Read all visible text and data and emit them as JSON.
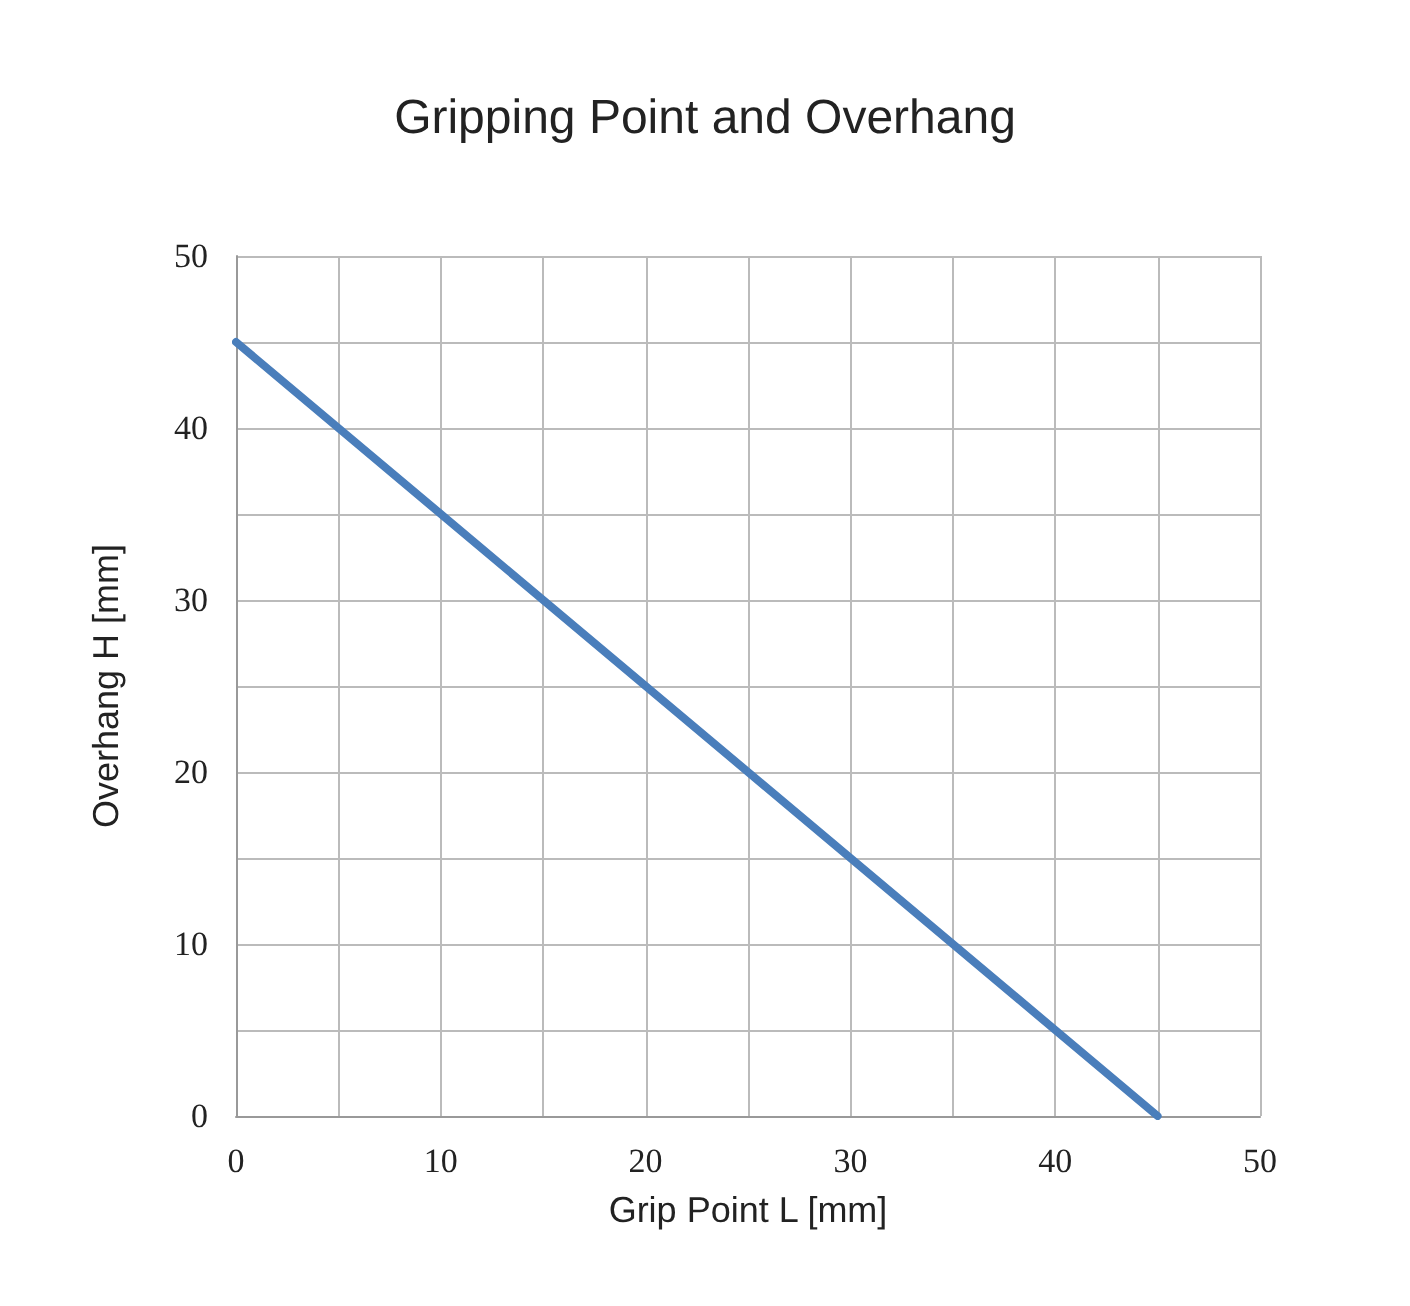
{
  "chart_data": {
    "type": "line",
    "title": "Gripping Point and Overhang",
    "xlabel": "Grip Point L [mm]",
    "ylabel": "Overhang H [mm]",
    "x": [
      0,
      45
    ],
    "series": [
      {
        "color": "#4a7ebb",
        "values": [
          45,
          0
        ]
      }
    ],
    "xlim": [
      0,
      50
    ],
    "ylim": [
      0,
      50
    ],
    "xticks": [
      0,
      {
        "value": 5,
        "label": null
      },
      10,
      {
        "value": 15,
        "label": null
      },
      20,
      {
        "value": 25,
        "label": null
      },
      30,
      {
        "value": 35,
        "label": null
      },
      40,
      {
        "value": 45,
        "label": null
      },
      50
    ],
    "yticks": [
      0,
      {
        "value": 5,
        "label": null
      },
      10,
      {
        "value": 15,
        "label": null
      },
      20,
      {
        "value": 25,
        "label": null
      },
      30,
      {
        "value": 35,
        "label": null
      },
      40,
      {
        "value": 45,
        "label": null
      },
      50
    ],
    "grid": true,
    "marker": "none",
    "line_style": "solid"
  }
}
